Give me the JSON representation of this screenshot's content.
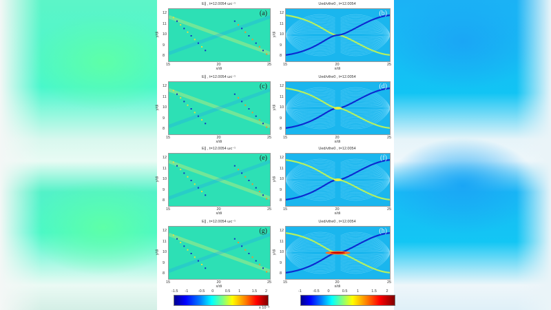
{
  "figure": {
    "panels": [
      {
        "id": "a",
        "title": "E∥ , t=12.0054 ωc⁻¹",
        "label": "(a)",
        "kind": "field"
      },
      {
        "id": "b",
        "title": "Ued/vthe0 , t=12.0054",
        "label": "(b)",
        "kind": "velocity"
      },
      {
        "id": "c",
        "title": "E∥ , t=12.0054 ωc⁻¹",
        "label": "(c)",
        "kind": "field"
      },
      {
        "id": "d",
        "title": "Ued/vthe0 , t=12.0054",
        "label": "(d)",
        "kind": "velocity"
      },
      {
        "id": "e",
        "title": "E∥ , t=12.0054 ωc⁻¹",
        "label": "(e)",
        "kind": "field"
      },
      {
        "id": "f",
        "title": "Ued/vthe0 , t=12.0054",
        "label": "(f)",
        "kind": "velocity"
      },
      {
        "id": "g",
        "title": "E∥ , t=12.0054 ωc⁻¹",
        "label": "(g)",
        "kind": "field"
      },
      {
        "id": "h",
        "title": "Ued/vthe0 , t=12.0054",
        "label": "(h)",
        "kind": "velocity"
      }
    ],
    "xlabel": "x/di",
    "ylabel": "y/di",
    "xticks": [
      "15",
      "20",
      "25"
    ],
    "yticks": [
      "12",
      "11",
      "10",
      "9",
      "8"
    ],
    "colorbar_left": {
      "ticks": [
        "-1.5",
        "-1",
        "-0.5",
        "0",
        "0.5",
        "1",
        "1.5",
        "2"
      ],
      "multiplier": "x 10⁻³"
    },
    "colorbar_right": {
      "ticks": [
        "-1",
        "-0.5",
        "0",
        "0.5",
        "1",
        "1.5",
        "2"
      ]
    }
  },
  "chart_data": [
    {
      "type": "heatmap",
      "title": "E∥ , t=12.0054 ωc⁻¹",
      "panel": "(a)",
      "xlabel": "x/di",
      "ylabel": "y/di",
      "xlim": [
        15,
        25
      ],
      "ylim": [
        7.6,
        12.6
      ],
      "xticks": [
        15,
        20,
        25
      ],
      "yticks": [
        8,
        9,
        10,
        11,
        12
      ],
      "colorscale": "jet",
      "clim": [
        -0.0015,
        0.002
      ]
    },
    {
      "type": "heatmap",
      "title": "Ued/vthe0 , t=12.0054",
      "panel": "(b)",
      "xlabel": "x/di",
      "ylabel": "y/di",
      "xlim": [
        15,
        25
      ],
      "ylim": [
        7.6,
        12.6
      ],
      "xticks": [
        15,
        20,
        25
      ],
      "yticks": [
        8,
        9,
        10,
        11,
        12
      ],
      "colorscale": "jet",
      "clim": [
        -1,
        2.5
      ]
    },
    {
      "type": "heatmap",
      "title": "E∥ , t=12.0054 ωc⁻¹",
      "panel": "(c)",
      "xlabel": "x/di",
      "ylabel": "y/di",
      "xlim": [
        15,
        25
      ],
      "ylim": [
        7.6,
        12.6
      ],
      "colorscale": "jet",
      "clim": [
        -0.0015,
        0.002
      ]
    },
    {
      "type": "heatmap",
      "title": "Ued/vthe0 , t=12.0054",
      "panel": "(d)",
      "xlabel": "x/di",
      "ylabel": "y/di",
      "xlim": [
        15,
        25
      ],
      "ylim": [
        7.6,
        12.6
      ],
      "colorscale": "jet",
      "clim": [
        -1,
        2.5
      ]
    },
    {
      "type": "heatmap",
      "title": "E∥ , t=12.0054 ωc⁻¹",
      "panel": "(e)",
      "xlabel": "x/di",
      "ylabel": "y/di",
      "xlim": [
        15,
        25
      ],
      "ylim": [
        7.6,
        12.6
      ],
      "colorscale": "jet",
      "clim": [
        -0.0015,
        0.002
      ]
    },
    {
      "type": "heatmap",
      "title": "Ued/vthe0 , t=12.0054",
      "panel": "(f)",
      "xlabel": "x/di",
      "ylabel": "y/di",
      "xlim": [
        15,
        25
      ],
      "ylim": [
        7.6,
        12.6
      ],
      "colorscale": "jet",
      "clim": [
        -1,
        2.5
      ]
    },
    {
      "type": "heatmap",
      "title": "E∥ , t=12.0054 ωc⁻¹",
      "panel": "(g)",
      "xlabel": "x/di",
      "ylabel": "y/di",
      "xlim": [
        15,
        25
      ],
      "ylim": [
        7.6,
        12.6
      ],
      "colorscale": "jet",
      "clim": [
        -0.0015,
        0.002
      ]
    },
    {
      "type": "heatmap",
      "title": "Ued/vthe0 , t=12.0054",
      "panel": "(h)",
      "xlabel": "x/di",
      "ylabel": "y/di",
      "xlim": [
        15,
        25
      ],
      "ylim": [
        7.6,
        12.6
      ],
      "colorscale": "jet",
      "clim": [
        -1,
        2.5
      ]
    }
  ]
}
